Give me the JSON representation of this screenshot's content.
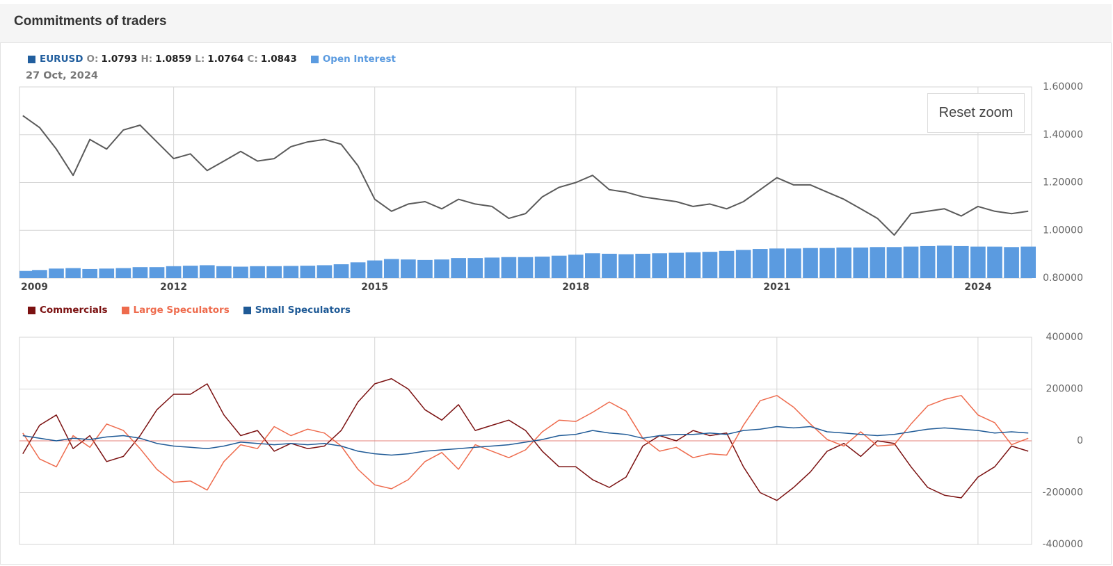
{
  "header": {
    "title": "Commitments of traders"
  },
  "reset_zoom": "Reset zoom",
  "chart_data": [
    {
      "type": "line",
      "date": "27 Oct, 2024",
      "ohlc": {
        "labels": [
          "O:",
          "H:",
          "L:",
          "C:"
        ],
        "values": [
          1.0793,
          1.0859,
          1.0764,
          1.0843
        ]
      },
      "x": [
        2009.75,
        2010,
        2010.25,
        2010.5,
        2010.75,
        2011,
        2011.25,
        2011.5,
        2011.75,
        2012,
        2012.25,
        2012.5,
        2012.75,
        2013,
        2013.25,
        2013.5,
        2013.75,
        2014,
        2014.25,
        2014.5,
        2014.75,
        2015,
        2015.25,
        2015.5,
        2015.75,
        2016,
        2016.25,
        2016.5,
        2016.75,
        2017,
        2017.25,
        2017.5,
        2017.75,
        2018,
        2018.25,
        2018.5,
        2018.75,
        2019,
        2019.25,
        2019.5,
        2019.75,
        2020,
        2020.25,
        2020.5,
        2020.75,
        2021,
        2021.25,
        2021.5,
        2021.75,
        2022,
        2022.25,
        2022.5,
        2022.75,
        2023,
        2023.25,
        2023.5,
        2023.75,
        2024,
        2024.25,
        2024.5,
        2024.75
      ],
      "series": [
        {
          "name": "EURUSD",
          "color": "#5a5a5a",
          "legend_color": "#215e9e",
          "values": [
            1.48,
            1.43,
            1.34,
            1.23,
            1.38,
            1.34,
            1.42,
            1.44,
            1.37,
            1.3,
            1.32,
            1.25,
            1.29,
            1.33,
            1.29,
            1.3,
            1.35,
            1.37,
            1.38,
            1.36,
            1.27,
            1.13,
            1.08,
            1.11,
            1.12,
            1.09,
            1.13,
            1.11,
            1.1,
            1.05,
            1.07,
            1.14,
            1.18,
            1.2,
            1.23,
            1.17,
            1.16,
            1.14,
            1.13,
            1.12,
            1.1,
            1.11,
            1.09,
            1.12,
            1.17,
            1.22,
            1.19,
            1.19,
            1.16,
            1.13,
            1.09,
            1.05,
            0.98,
            1.07,
            1.08,
            1.09,
            1.06,
            1.1,
            1.08,
            1.07,
            1.08
          ]
        },
        {
          "name": "Open Interest",
          "type": "bar",
          "axis": "y2",
          "color": "#5b9be0",
          "values": [
            150000,
            170000,
            200000,
            210000,
            190000,
            200000,
            210000,
            230000,
            230000,
            250000,
            260000,
            270000,
            250000,
            240000,
            250000,
            250000,
            255000,
            260000,
            270000,
            290000,
            330000,
            370000,
            400000,
            390000,
            380000,
            390000,
            420000,
            420000,
            430000,
            440000,
            440000,
            450000,
            470000,
            490000,
            520000,
            510000,
            500000,
            510000,
            520000,
            530000,
            540000,
            550000,
            570000,
            590000,
            610000,
            620000,
            620000,
            630000,
            630000,
            640000,
            640000,
            650000,
            650000,
            660000,
            670000,
            680000,
            670000,
            660000,
            660000,
            650000,
            660000
          ]
        }
      ],
      "xlim": [
        2009.7,
        2024.8
      ],
      "xticks": [
        2009,
        2012,
        2015,
        2018,
        2021,
        2024
      ],
      "ylim": [
        0.8,
        1.6
      ],
      "yticks": [
        {
          "value": 0.8,
          "label": "0.80000"
        },
        {
          "value": 1.0,
          "label": "1.00000"
        },
        {
          "value": 1.2,
          "label": "1.20000"
        },
        {
          "value": 1.4,
          "label": "1.40000"
        },
        {
          "value": 1.6,
          "label": "1.60000"
        }
      ],
      "y2lim": [
        0,
        4000000
      ],
      "grid": true
    },
    {
      "type": "line",
      "series": [
        {
          "name": "Commercials",
          "color": "#7b1111",
          "values": [
            -50000,
            60000,
            100000,
            -30000,
            20000,
            -80000,
            -60000,
            20000,
            120000,
            180000,
            180000,
            220000,
            100000,
            20000,
            40000,
            -40000,
            -10000,
            -30000,
            -20000,
            40000,
            150000,
            220000,
            240000,
            200000,
            120000,
            80000,
            140000,
            40000,
            60000,
            80000,
            40000,
            -40000,
            -100000,
            -100000,
            -150000,
            -180000,
            -140000,
            -20000,
            20000,
            0,
            40000,
            20000,
            30000,
            -100000,
            -200000,
            -230000,
            -180000,
            -120000,
            -40000,
            -10000,
            -60000,
            0,
            -10000,
            -100000,
            -180000,
            -210000,
            -220000,
            -140000,
            -100000,
            -20000,
            -40000
          ]
        },
        {
          "name": "Large Speculators",
          "color": "#ee6b4d",
          "values": [
            30000,
            -70000,
            -100000,
            20000,
            -25000,
            65000,
            40000,
            -30000,
            -110000,
            -160000,
            -155000,
            -190000,
            -80000,
            -15000,
            -30000,
            55000,
            20000,
            45000,
            30000,
            -20000,
            -110000,
            -170000,
            -185000,
            -150000,
            -80000,
            -45000,
            -110000,
            -15000,
            -40000,
            -65000,
            -35000,
            35000,
            80000,
            75000,
            110000,
            150000,
            115000,
            10000,
            -40000,
            -25000,
            -65000,
            -50000,
            -55000,
            60000,
            155000,
            175000,
            130000,
            65000,
            5000,
            -20000,
            35000,
            -20000,
            -15000,
            65000,
            135000,
            160000,
            175000,
            100000,
            70000,
            -15000,
            10000
          ]
        },
        {
          "name": "Small Speculators",
          "color": "#1f5a96",
          "values": [
            20000,
            10000,
            0,
            10000,
            5000,
            15000,
            20000,
            10000,
            -10000,
            -20000,
            -25000,
            -30000,
            -20000,
            -5000,
            -10000,
            -15000,
            -10000,
            -15000,
            -10000,
            -20000,
            -40000,
            -50000,
            -55000,
            -50000,
            -40000,
            -35000,
            -30000,
            -25000,
            -20000,
            -15000,
            -5000,
            5000,
            20000,
            25000,
            40000,
            30000,
            25000,
            10000,
            20000,
            25000,
            25000,
            30000,
            25000,
            40000,
            45000,
            55000,
            50000,
            55000,
            35000,
            30000,
            25000,
            20000,
            25000,
            35000,
            45000,
            50000,
            45000,
            40000,
            30000,
            35000,
            30000
          ]
        }
      ],
      "ylim": [
        -400000,
        400000
      ],
      "yticks": [
        -400000,
        -200000,
        0,
        200000,
        400000
      ],
      "zero_line_color": "#e5807a",
      "grid": true
    }
  ]
}
